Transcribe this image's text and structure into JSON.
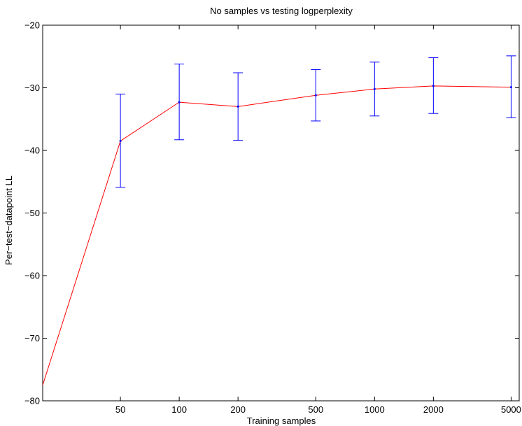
{
  "chart_data": {
    "type": "line",
    "title": "No samples vs testing logperplexity",
    "xlabel": "Training samples",
    "ylabel": "Per−test−datapoint LL",
    "x_scale": "log",
    "xlim": [
      20,
      5500
    ],
    "ylim": [
      -80,
      -20
    ],
    "x_ticks": [
      50,
      100,
      200,
      500,
      1000,
      2000,
      5000
    ],
    "x_tick_labels": [
      "50",
      "100",
      "200",
      "500",
      "1000",
      "2000",
      "5000"
    ],
    "y_ticks": [
      -80,
      -70,
      -60,
      -50,
      -40,
      -30,
      -20
    ],
    "y_tick_labels": [
      "−80",
      "−70",
      "−60",
      "−50",
      "−40",
      "−30",
      "−20"
    ],
    "grid": false,
    "series": [
      {
        "color": "#ff0000",
        "error_color": "#0000ff",
        "points": [
          {
            "x": 20,
            "y": -77.5
          },
          {
            "x": 50,
            "y": -38.5,
            "err_low": -45.9,
            "err_high": -31.0
          },
          {
            "x": 100,
            "y": -32.3,
            "err_low": -38.3,
            "err_high": -26.2
          },
          {
            "x": 200,
            "y": -33.0,
            "err_low": -38.4,
            "err_high": -27.6
          },
          {
            "x": 500,
            "y": -31.2,
            "err_low": -35.3,
            "err_high": -27.1
          },
          {
            "x": 1000,
            "y": -30.2,
            "err_low": -34.5,
            "err_high": -25.9
          },
          {
            "x": 2000,
            "y": -29.7,
            "err_low": -34.1,
            "err_high": -25.2
          },
          {
            "x": 5000,
            "y": -29.9,
            "err_low": -34.8,
            "err_high": -24.9
          }
        ]
      }
    ]
  }
}
